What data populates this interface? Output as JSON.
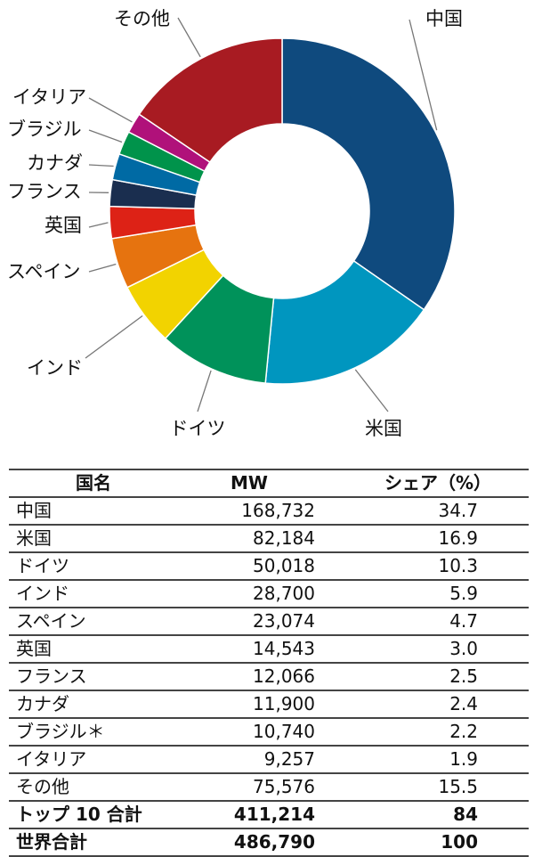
{
  "chart_data": {
    "type": "pie",
    "subtype": "donut",
    "title": "",
    "unit": "MW",
    "categories": [
      "中国",
      "米国",
      "ドイツ",
      "インド",
      "スペイン",
      "英国",
      "フランス",
      "カナダ",
      "ブラジル",
      "イタリア",
      "その他"
    ],
    "values": [
      168732,
      82184,
      50018,
      28700,
      23074,
      14543,
      12066,
      11900,
      10740,
      9257,
      75576
    ],
    "shares_percent": [
      34.7,
      16.9,
      10.3,
      5.9,
      4.7,
      3.0,
      2.5,
      2.4,
      2.2,
      1.9,
      15.5
    ],
    "colors": [
      "#0f4a7e",
      "#0096bf",
      "#00925a",
      "#f2d300",
      "#e6730f",
      "#dd2216",
      "#1a2e4f",
      "#006aa4",
      "#00934b",
      "#b0117a",
      "#a81b22"
    ],
    "start_angle_deg": 0,
    "direction": "clockwise",
    "legend_position": "leader-line labels"
  },
  "table": {
    "headers": [
      "国名",
      "MW",
      "シェア（%）"
    ],
    "rows": [
      {
        "name": "中国",
        "mw": "168,732",
        "share": "34.7"
      },
      {
        "name": "米国",
        "mw": "82,184",
        "share": "16.9"
      },
      {
        "name": "ドイツ",
        "mw": "50,018",
        "share": "10.3"
      },
      {
        "name": "インド",
        "mw": "28,700",
        "share": "5.9"
      },
      {
        "name": "スペイン",
        "mw": "23,074",
        "share": "4.7"
      },
      {
        "name": "英国",
        "mw": "14,543",
        "share": "3.0"
      },
      {
        "name": "フランス",
        "mw": "12,066",
        "share": "2.5"
      },
      {
        "name": "カナダ",
        "mw": "11,900",
        "share": "2.4"
      },
      {
        "name": "ブラジル＊",
        "mw": "10,740",
        "share": "2.2"
      },
      {
        "name": "イタリア",
        "mw": "9,257",
        "share": "1.9"
      },
      {
        "name": "その他",
        "mw": "75,576",
        "share": "15.5"
      }
    ],
    "totals": [
      {
        "name": "トップ 10 合計",
        "mw": "411,214",
        "share": "84"
      },
      {
        "name": "世界合計",
        "mw": "486,790",
        "share": "100"
      }
    ]
  }
}
